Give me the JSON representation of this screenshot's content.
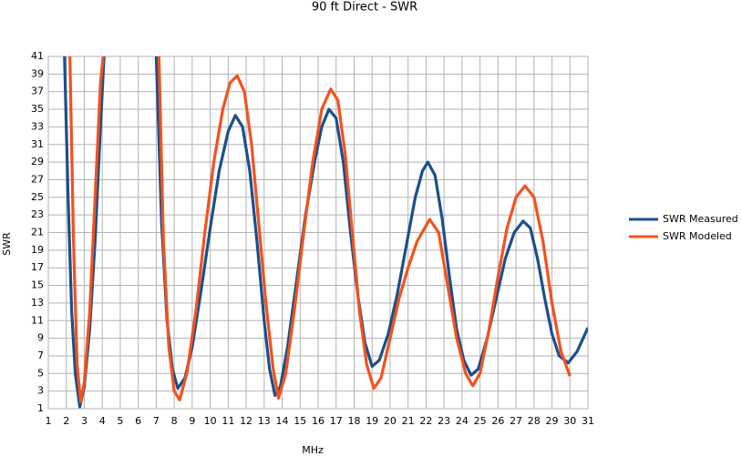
{
  "chart_data": {
    "type": "line",
    "title": "90 ft Direct - SWR",
    "xlabel": "MHz",
    "ylabel": "SWR",
    "xlim": [
      1,
      31
    ],
    "ylim": [
      1,
      41
    ],
    "xticks": [
      1,
      2,
      3,
      4,
      5,
      6,
      7,
      8,
      9,
      10,
      11,
      12,
      13,
      14,
      15,
      16,
      17,
      18,
      19,
      20,
      21,
      22,
      23,
      24,
      25,
      26,
      27,
      28,
      29,
      30,
      31
    ],
    "yticks": [
      1,
      3,
      5,
      7,
      9,
      11,
      13,
      15,
      17,
      19,
      21,
      23,
      25,
      27,
      29,
      31,
      33,
      35,
      37,
      39,
      41
    ],
    "grid": true,
    "legend": "right",
    "series": [
      {
        "name": "SWR Measured",
        "color": "#1b4f8a",
        "x": [
          1.9,
          2.1,
          2.3,
          2.5,
          2.75,
          3.0,
          3.3,
          3.6,
          3.9,
          4.1,
          5.5,
          7.0,
          7.3,
          7.6,
          7.9,
          8.2,
          8.6,
          9.0,
          9.5,
          10.0,
          10.5,
          11.0,
          11.4,
          11.8,
          12.2,
          12.6,
          13.0,
          13.3,
          13.6,
          13.9,
          14.3,
          14.8,
          15.3,
          15.8,
          16.2,
          16.6,
          17.0,
          17.4,
          17.8,
          18.2,
          18.6,
          19.0,
          19.4,
          19.9,
          20.4,
          20.9,
          21.4,
          21.8,
          22.1,
          22.5,
          22.9,
          23.3,
          23.7,
          24.1,
          24.5,
          24.9,
          25.4,
          25.9,
          26.4,
          26.9,
          27.4,
          27.8,
          28.2,
          28.6,
          29.0,
          29.4,
          29.9,
          30.4,
          31.0
        ],
        "values": [
          41,
          25,
          12,
          5,
          1.2,
          3.5,
          10,
          20,
          33,
          41,
          null,
          41,
          22,
          11,
          5.5,
          3.3,
          4.5,
          8,
          14.5,
          21.5,
          28,
          32.5,
          34.3,
          33,
          28,
          20,
          11,
          5.5,
          2.5,
          3.5,
          8,
          15.5,
          23,
          29,
          33,
          35,
          34,
          29,
          21,
          14,
          8.5,
          5.8,
          6.5,
          9.5,
          14,
          19.5,
          25,
          28,
          29,
          27.5,
          22.5,
          16,
          10,
          6.5,
          4.8,
          5.5,
          9,
          13.5,
          18,
          21,
          22.3,
          21.5,
          18,
          13.5,
          9.5,
          7,
          6.2,
          7.5,
          10.2
        ]
      },
      {
        "name": "SWR Modeled",
        "color": "#f4511e",
        "x": [
          2.2,
          2.4,
          2.6,
          2.8,
          3.0,
          3.3,
          3.6,
          3.9,
          4.05,
          5.5,
          7.15,
          7.4,
          7.7,
          8.0,
          8.3,
          8.7,
          9.2,
          9.7,
          10.2,
          10.7,
          11.1,
          11.5,
          11.9,
          12.3,
          12.7,
          13.1,
          13.5,
          13.8,
          14.2,
          14.7,
          15.2,
          15.7,
          16.2,
          16.7,
          17.1,
          17.5,
          17.9,
          18.3,
          18.7,
          19.1,
          19.5,
          20.0,
          20.5,
          21.0,
          21.5,
          22.2,
          22.7,
          23.2,
          23.7,
          24.2,
          24.6,
          25.0,
          25.5,
          26.0,
          26.5,
          27.0,
          27.5,
          28.0,
          28.5,
          29.0,
          29.5,
          30.0
        ],
        "values": [
          41,
          20,
          6,
          1.8,
          4,
          12,
          25,
          38,
          41,
          null,
          41,
          20,
          8,
          3,
          2,
          5,
          12,
          21,
          29,
          35,
          38,
          38.8,
          37,
          31,
          22,
          13,
          5.5,
          2.2,
          5,
          12.5,
          21,
          29,
          35,
          37.3,
          36,
          30,
          21,
          12,
          6,
          3.3,
          4.5,
          9,
          13.5,
          17,
          20,
          22.5,
          21,
          15,
          9,
          5,
          3.6,
          5,
          10,
          16,
          21.5,
          25,
          26.3,
          25,
          20,
          13,
          7.5,
          4.7
        ]
      }
    ]
  }
}
